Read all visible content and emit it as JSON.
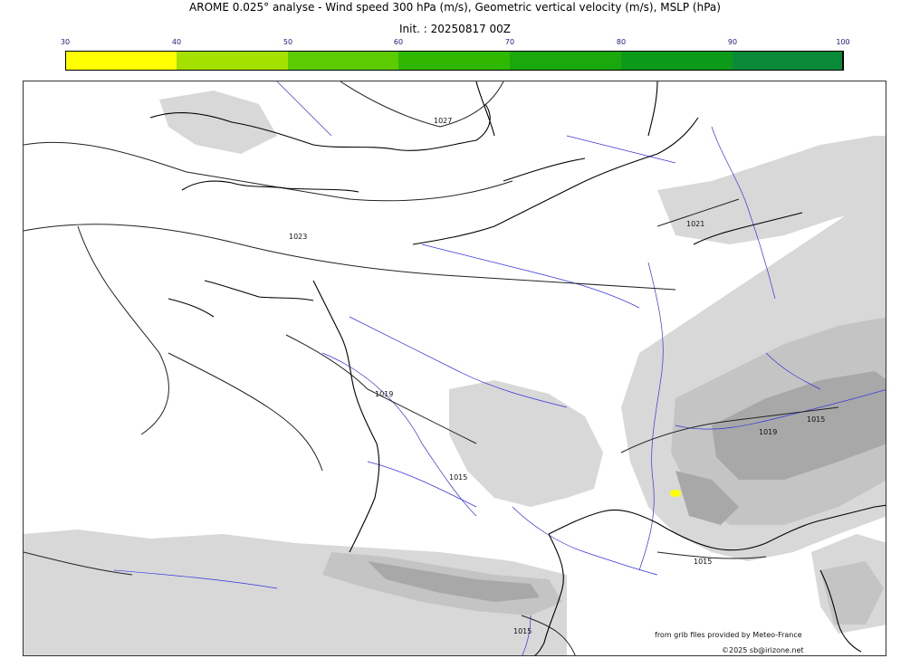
{
  "header": {
    "title": "AROME 0.025° analyse - Wind speed 300 hPa (m/s), Geometric vertical velocity (m/s), MSLP (hPa)",
    "init": "Init. : 20250817 00Z"
  },
  "colorbar": {
    "ticks": [
      "30",
      "40",
      "50",
      "60",
      "70",
      "80",
      "90",
      "100"
    ],
    "colors": [
      "#ffff00",
      "#a4e000",
      "#5ccc00",
      "#30b800",
      "#1aa80c",
      "#0c9a1a",
      "#0a8a38",
      "#0c7a4a"
    ]
  },
  "map": {
    "isobar_labels": [
      "1027",
      "1023",
      "1019",
      "1015",
      "1021",
      "1019",
      "1015",
      "1015",
      "1015"
    ],
    "colors": {
      "coast": "#000000",
      "isobar": "#222222",
      "river": "#3333dd",
      "relief_light": "#d8d8d8",
      "relief_mid": "#c4c4c4",
      "relief_dark": "#a8a8a8",
      "jet": "#ffff00"
    }
  },
  "footer": {
    "credit": "from grib files provided by Meteo-France",
    "copyright": "©2025 sb@irizone.net"
  }
}
